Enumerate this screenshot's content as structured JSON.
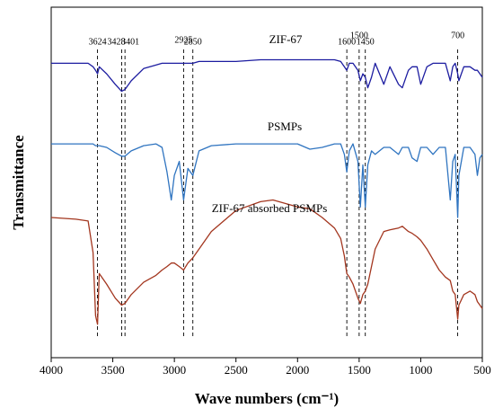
{
  "chart_data": {
    "type": "line",
    "xlabel": "Wave numbers (cm⁻¹)",
    "ylabel": "Transmittance",
    "x": [
      4000,
      3800,
      3700,
      3660,
      3640,
      3624,
      3610,
      3550,
      3480,
      3428,
      3401,
      3350,
      3250,
      3150,
      3100,
      3060,
      3025,
      3000,
      2960,
      2925,
      2890,
      2850,
      2800,
      2700,
      2500,
      2300,
      2200,
      2000,
      1900,
      1800,
      1700,
      1650,
      1620,
      1600,
      1580,
      1550,
      1510,
      1490,
      1470,
      1450,
      1430,
      1400,
      1370,
      1300,
      1250,
      1180,
      1150,
      1100,
      1070,
      1030,
      1000,
      950,
      900,
      850,
      800,
      760,
      740,
      720,
      700,
      690,
      650,
      600,
      560,
      540,
      520,
      500
    ],
    "series": [
      {
        "name": "ZIF-67",
        "color": "#1c1ca0",
        "values": [
          84,
          84,
          84,
          83,
          82,
          81,
          83,
          81,
          78,
          76,
          76.5,
          79,
          82.5,
          83.5,
          84,
          84,
          84,
          84,
          84,
          84,
          84,
          84,
          84.5,
          84.5,
          84.5,
          85,
          85,
          85,
          85,
          85,
          85,
          84.5,
          83,
          82,
          84,
          84,
          82,
          79,
          81,
          80,
          77,
          80,
          84,
          78,
          83,
          78,
          77,
          82,
          83,
          83,
          78,
          83,
          84,
          84,
          84,
          79,
          83,
          84,
          81,
          79,
          83,
          83,
          82,
          82,
          81,
          80
        ]
      },
      {
        "name": "PSMPs",
        "color": "#2f74c0",
        "values": [
          61,
          61,
          61,
          61,
          60.5,
          60.5,
          60.5,
          60,
          58.5,
          57.5,
          57.5,
          59,
          60.5,
          61,
          60,
          53,
          45,
          52,
          56,
          45,
          54,
          52,
          59,
          60.5,
          61,
          61,
          61,
          61,
          59.5,
          60,
          61,
          61,
          58,
          53,
          59,
          61,
          56,
          43,
          55,
          43,
          55,
          59,
          58,
          60,
          60,
          58,
          60,
          60,
          57,
          56,
          60,
          60,
          58,
          60,
          60,
          45,
          56,
          58,
          40,
          52,
          60,
          60,
          58,
          52,
          57,
          58
        ]
      },
      {
        "name": "ZIF-67 absorbed PSMPs",
        "color": "#a3361f",
        "values": [
          40,
          39.5,
          39,
          30,
          12,
          9.5,
          24,
          21,
          17,
          15,
          15.5,
          18,
          21.5,
          23.5,
          25,
          26,
          27,
          27,
          26,
          25,
          27,
          28.5,
          31,
          36,
          42,
          44.5,
          45,
          43,
          42.5,
          40,
          37,
          34,
          29,
          24,
          23,
          21,
          17,
          15.5,
          18,
          19,
          21,
          26,
          31,
          36,
          36.5,
          37,
          37.5,
          36,
          35.5,
          34.5,
          33.5,
          31,
          28,
          25,
          23,
          22,
          19,
          18,
          11,
          15,
          18,
          19,
          18,
          16,
          15,
          14
        ]
      }
    ],
    "peaks": [
      3624,
      3428,
      3401,
      2925,
      2850,
      1600,
      1500,
      1450,
      700
    ],
    "xlim": [
      4000,
      500
    ],
    "xticks": [
      4000,
      3500,
      3000,
      2500,
      2000,
      1500,
      1000,
      500
    ],
    "ylim": [
      0,
      100
    ]
  }
}
